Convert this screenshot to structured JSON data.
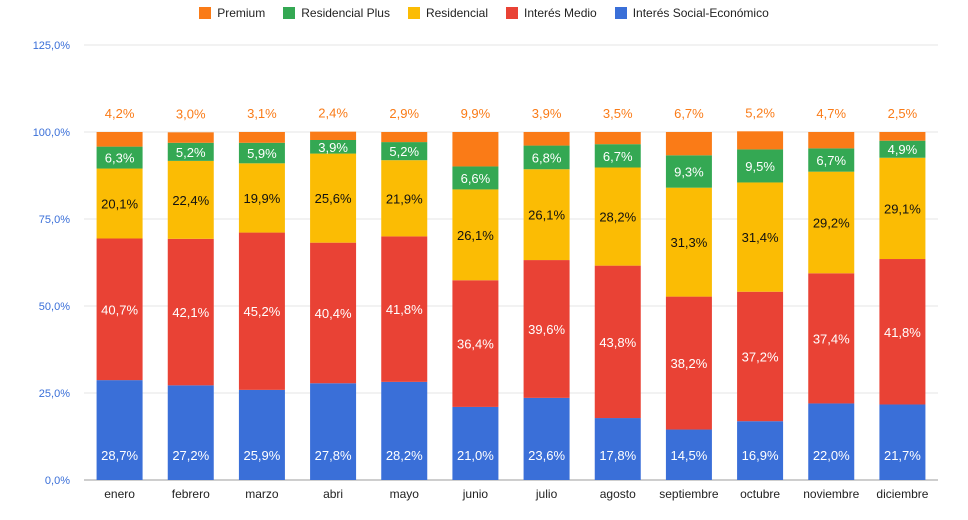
{
  "chart_data": {
    "type": "bar",
    "stacked": true,
    "title": "",
    "xlabel": "",
    "ylabel": "",
    "ylim": [
      0,
      125
    ],
    "y_ticks": [
      "0,0%",
      "25,0%",
      "50,0%",
      "75,0%",
      "100,0%",
      "125,0%"
    ],
    "grid": true,
    "legend_position": "top",
    "categories": [
      "enero",
      "febrero",
      "marzo",
      "abri",
      "mayo",
      "junio",
      "julio",
      "agosto",
      "septiembre",
      "octubre",
      "noviembre",
      "diciembre"
    ],
    "series": [
      {
        "name": "Interés Social-Económico",
        "color": "#3a6fd8",
        "label_color": "#ffffff",
        "values": [
          28.7,
          27.2,
          25.9,
          27.8,
          28.2,
          21.0,
          23.6,
          17.8,
          14.5,
          16.9,
          22.0,
          21.7
        ],
        "labels": [
          "28,7%",
          "27,2%",
          "25,9%",
          "27,8%",
          "28,2%",
          "21,0%",
          "23,6%",
          "17,8%",
          "14,5%",
          "16,9%",
          "22,0%",
          "21,7%"
        ]
      },
      {
        "name": "Interés Medio",
        "color": "#e94235",
        "label_color": "#ffffff",
        "values": [
          40.7,
          42.1,
          45.2,
          40.4,
          41.8,
          36.4,
          39.6,
          43.8,
          38.2,
          37.2,
          37.4,
          41.8
        ],
        "labels": [
          "40,7%",
          "42,1%",
          "45,2%",
          "40,4%",
          "41,8%",
          "36,4%",
          "39,6%",
          "43,8%",
          "38,2%",
          "37,2%",
          "37,4%",
          "41,8%"
        ]
      },
      {
        "name": "Residencial",
        "color": "#fbbc04",
        "label_color": "#111111",
        "values": [
          20.1,
          22.4,
          19.9,
          25.6,
          21.9,
          26.1,
          26.1,
          28.2,
          31.3,
          31.4,
          29.2,
          29.1
        ],
        "labels": [
          "20,1%",
          "22,4%",
          "19,9%",
          "25,6%",
          "21,9%",
          "26,1%",
          "26,1%",
          "28,2%",
          "31,3%",
          "31,4%",
          "29,2%",
          "29,1%"
        ]
      },
      {
        "name": "Residencial Plus",
        "color": "#34a853",
        "label_color": "#ffffff",
        "values": [
          6.3,
          5.2,
          5.9,
          3.9,
          5.2,
          6.6,
          6.8,
          6.7,
          9.3,
          9.5,
          6.7,
          4.9
        ],
        "labels": [
          "6,3%",
          "5,2%",
          "5,9%",
          "3,9%",
          "5,2%",
          "6,6%",
          "6,8%",
          "6,7%",
          "9,3%",
          "9,5%",
          "6,7%",
          "4,9%"
        ]
      },
      {
        "name": "Premium",
        "color": "#fa7b17",
        "label_color": "#fa7b17",
        "values": [
          4.2,
          3.0,
          3.1,
          2.4,
          2.9,
          9.9,
          3.9,
          3.5,
          6.7,
          5.2,
          4.7,
          2.5
        ],
        "labels": [
          "4,2%",
          "3,0%",
          "3,1%",
          "2,4%",
          "2,9%",
          "9,9%",
          "3,9%",
          "3,5%",
          "6,7%",
          "5,2%",
          "4,7%",
          "2,5%"
        ]
      }
    ],
    "legend_order": [
      "Premium",
      "Residencial Plus",
      "Residencial",
      "Interés Medio",
      "Interés Social-Económico"
    ],
    "axis_label_color": "#3a6fd8"
  }
}
